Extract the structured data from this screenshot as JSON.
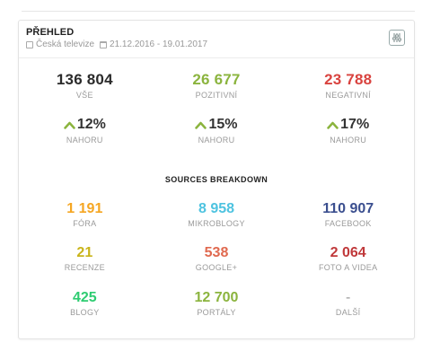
{
  "card": {
    "title": "PŘEHLED",
    "source": "Česká televize",
    "date_range": "21.12.2016 - 19.01.2017"
  },
  "totals": [
    {
      "value": "136 804",
      "label": "VŠE",
      "color": "#2b2b2b"
    },
    {
      "value": "26 677",
      "label": "POZITIVNÍ",
      "color": "#8bb43e"
    },
    {
      "value": "23 788",
      "label": "NEGATIVNÍ",
      "color": "#d9433f"
    }
  ],
  "trends": [
    {
      "value": "12%",
      "label": "NAHORU",
      "arrow": "up"
    },
    {
      "value": "15%",
      "label": "NAHORU",
      "arrow": "up"
    },
    {
      "value": "17%",
      "label": "NAHORU",
      "arrow": "up"
    }
  ],
  "trend_arrow_color": "#8bb43e",
  "sources": {
    "title": "SOURCES BREAKDOWN",
    "items": [
      {
        "value": "1 191",
        "label": "FÓRA",
        "color": "#f5a623"
      },
      {
        "value": "8 958",
        "label": "MIKROBLOGY",
        "color": "#4ec3e0"
      },
      {
        "value": "110 907",
        "label": "FACEBOOK",
        "color": "#3b4f8f"
      },
      {
        "value": "21",
        "label": "RECENZE",
        "color": "#c9b41a"
      },
      {
        "value": "538",
        "label": "GOOGLE+",
        "color": "#e0694f"
      },
      {
        "value": "2 064",
        "label": "FOTO A VIDEA",
        "color": "#c0393b"
      },
      {
        "value": "425",
        "label": "BLOGY",
        "color": "#2ecc71"
      },
      {
        "value": "12 700",
        "label": "PORTÁLY",
        "color": "#8bb43e"
      },
      {
        "value": "-",
        "label": "DALŠÍ",
        "color": "#999999"
      }
    ]
  },
  "icons": {
    "source": "tv-icon",
    "date": "calendar-icon",
    "settings": "sliders-icon"
  }
}
